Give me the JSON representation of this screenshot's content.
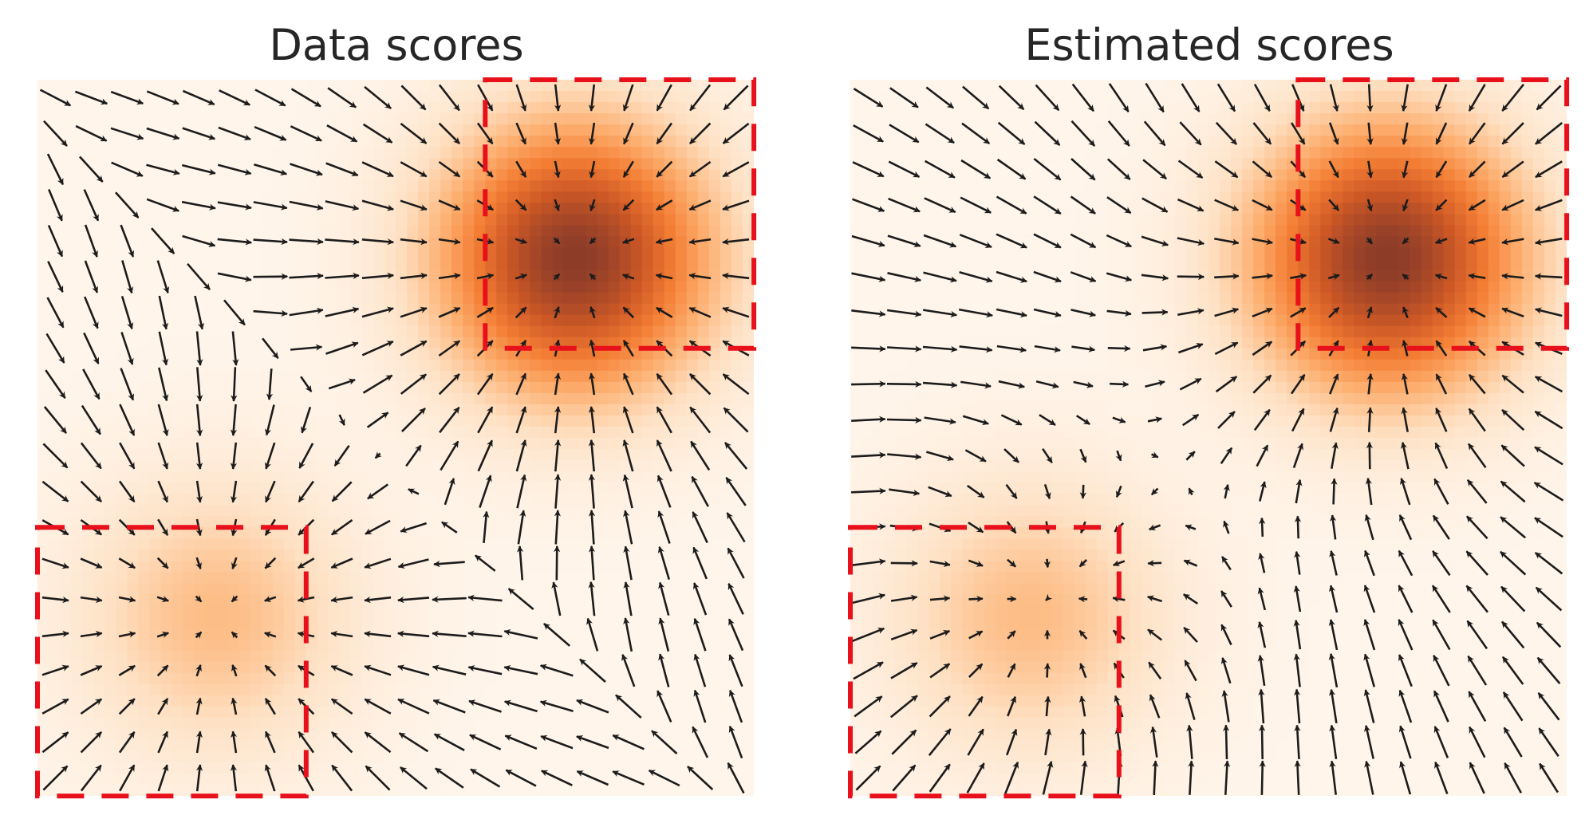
{
  "chart_data": [
    {
      "type": "vector field",
      "title": "Data scores",
      "xlabel": "",
      "ylabel": "",
      "xlim": [
        -1,
        1
      ],
      "ylim": [
        -1,
        1
      ],
      "grid": false,
      "legend": "none",
      "grid_points_per_axis": 20,
      "density": {
        "components": [
          {
            "center": [
              0.5,
              0.5
            ],
            "weight": 0.8
          },
          {
            "center": [
              -0.5,
              -0.5
            ],
            "weight": 0.2
          }
        ],
        "colormap": "Oranges"
      },
      "regions": [
        {
          "x": [
            0.25,
            1.0
          ],
          "y": [
            0.25,
            1.0
          ],
          "style": "dashed",
          "color": "#e8101a"
        },
        {
          "x": [
            -1.0,
            -0.25
          ],
          "y": [
            -1.0,
            -0.25
          ],
          "style": "dashed",
          "color": "#e8101a"
        }
      ],
      "arrow_color": "#1c1c1c"
    },
    {
      "type": "vector field",
      "title": "Estimated scores",
      "xlabel": "",
      "ylabel": "",
      "xlim": [
        -1,
        1
      ],
      "ylim": [
        -1,
        1
      ],
      "grid": false,
      "legend": "none",
      "grid_points_per_axis": 20,
      "density": {
        "components": [
          {
            "center": [
              0.5,
              0.5
            ],
            "weight": 0.8
          },
          {
            "center": [
              -0.5,
              -0.5
            ],
            "weight": 0.2
          }
        ],
        "colormap": "Oranges"
      },
      "regions": [
        {
          "x": [
            0.25,
            1.0
          ],
          "y": [
            0.25,
            1.0
          ],
          "style": "dashed",
          "color": "#e8101a"
        },
        {
          "x": [
            -1.0,
            -0.25
          ],
          "y": [
            -1.0,
            -0.25
          ],
          "style": "dashed",
          "color": "#e8101a"
        }
      ],
      "arrow_color": "#1c1c1c"
    }
  ]
}
